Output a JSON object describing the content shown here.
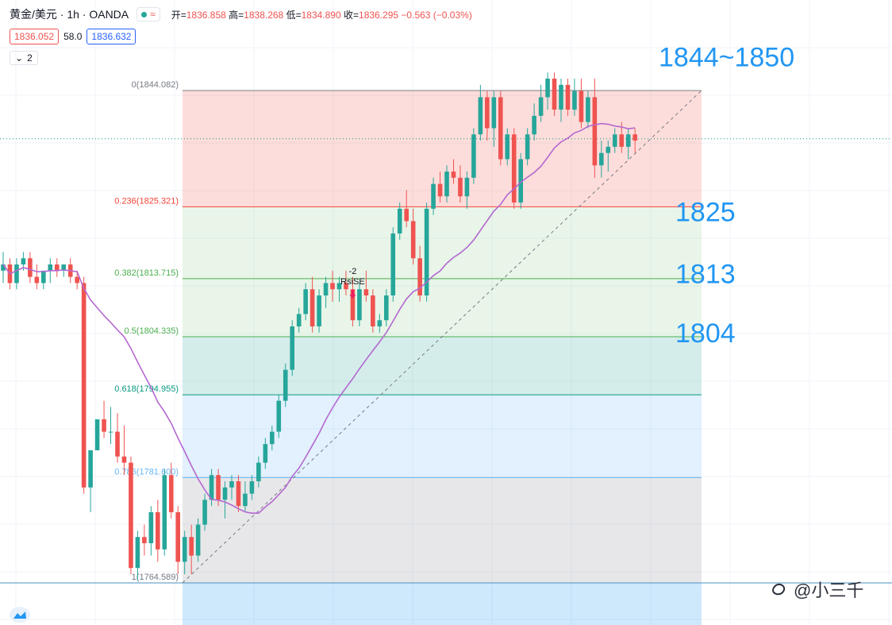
{
  "header": {
    "symbol": "黄金/美元 · 1h · OANDA",
    "ohlc_open_label": "开=",
    "ohlc_open": "1836.858",
    "ohlc_high_label": "高=",
    "ohlc_high": "1838.268",
    "ohlc_low_label": "低=",
    "ohlc_low": "1834.890",
    "ohlc_close_label": "收=",
    "ohlc_close": "1836.295",
    "ohlc_change": "−0.563 (−0.03%)",
    "sell_price": "1836.052",
    "spread": "58.0",
    "buy_price": "1836.632",
    "indicator_count": "2"
  },
  "watermark": "@小三千",
  "colors": {
    "up": "#26a69a",
    "down": "#ef5350",
    "ma": "#b468d0",
    "label_blue": "#2196f3"
  },
  "chart_data": {
    "type": "candlestick",
    "title": "黄金/美元 · 1h · OANDA",
    "ylim": [
      1760,
      1852
    ],
    "last_price": 1836.295,
    "fib_levels": [
      {
        "ratio": "0",
        "price": 1844.082,
        "label": "0(1844.082)"
      },
      {
        "ratio": "0.236",
        "price": 1825.321,
        "label": "0.236(1825.321)"
      },
      {
        "ratio": "0.382",
        "price": 1813.715,
        "label": "0.382(1813.715)"
      },
      {
        "ratio": "0.5",
        "price": 1804.335,
        "label": "0.5(1804.335)"
      },
      {
        "ratio": "0.618",
        "price": 1794.955,
        "label": "0.618(1794.955)"
      },
      {
        "ratio": "0.786",
        "price": 1781.6,
        "label": "0.786(1781.600)"
      },
      {
        "ratio": "1",
        "price": 1764.589,
        "label": "1(1764.589)"
      }
    ],
    "annotations": [
      {
        "text": "1844~1850",
        "price": 1849.5
      },
      {
        "text": "1825",
        "price": 1824.5
      },
      {
        "text": "1813",
        "price": 1814.5
      },
      {
        "text": "1804",
        "price": 1805
      }
    ],
    "signal": {
      "label1": "-2",
      "label2": "RsiSE",
      "bar": 52
    },
    "candles": [
      [
        1815,
        1818,
        1813,
        1816
      ],
      [
        1816,
        1817,
        1812,
        1813
      ],
      [
        1813,
        1817,
        1812,
        1816
      ],
      [
        1816,
        1818,
        1815,
        1817
      ],
      [
        1817,
        1818,
        1813,
        1814
      ],
      [
        1814,
        1816,
        1812,
        1813
      ],
      [
        1813,
        1815,
        1812,
        1815
      ],
      [
        1815,
        1817,
        1813,
        1816
      ],
      [
        1816,
        1817,
        1814,
        1815
      ],
      [
        1815,
        1816,
        1814,
        1816
      ],
      [
        1816,
        1817,
        1813,
        1814
      ],
      [
        1814,
        1815,
        1812,
        1813
      ],
      [
        1813,
        1814,
        1779,
        1780
      ],
      [
        1780,
        1786,
        1776,
        1786
      ],
      [
        1786,
        1791,
        1786,
        1791
      ],
      [
        1791,
        1794,
        1788,
        1789
      ],
      [
        1789,
        1793,
        1787,
        1789
      ],
      [
        1789,
        1792,
        1784,
        1785
      ],
      [
        1785,
        1790,
        1782,
        1784
      ],
      [
        1784,
        1785,
        1766,
        1767
      ],
      [
        1767,
        1773,
        1765,
        1772
      ],
      [
        1772,
        1774,
        1769,
        1771
      ],
      [
        1771,
        1777,
        1769,
        1776
      ],
      [
        1776,
        1778,
        1768,
        1770
      ],
      [
        1770,
        1783,
        1769,
        1782
      ],
      [
        1782,
        1784,
        1775,
        1776
      ],
      [
        1776,
        1777,
        1766,
        1768
      ],
      [
        1768,
        1773,
        1766,
        1772
      ],
      [
        1772,
        1774,
        1766,
        1769
      ],
      [
        1769,
        1775,
        1768,
        1774
      ],
      [
        1774,
        1779,
        1773,
        1778
      ],
      [
        1778,
        1783,
        1777,
        1782
      ],
      [
        1782,
        1783,
        1777,
        1778
      ],
      [
        1778,
        1781,
        1775,
        1780
      ],
      [
        1780,
        1782,
        1778,
        1781
      ],
      [
        1781,
        1782,
        1776,
        1777
      ],
      [
        1777,
        1781,
        1776,
        1779
      ],
      [
        1779,
        1782,
        1778,
        1781
      ],
      [
        1781,
        1785,
        1780,
        1784
      ],
      [
        1784,
        1788,
        1783,
        1787
      ],
      [
        1787,
        1790,
        1786,
        1789
      ],
      [
        1789,
        1795,
        1788,
        1794
      ],
      [
        1794,
        1800,
        1793,
        1799
      ],
      [
        1799,
        1807,
        1798,
        1806
      ],
      [
        1806,
        1809,
        1805,
        1808
      ],
      [
        1808,
        1813,
        1807,
        1812
      ],
      [
        1812,
        1814,
        1805,
        1806
      ],
      [
        1806,
        1812,
        1805,
        1811
      ],
      [
        1811,
        1814,
        1809,
        1813
      ],
      [
        1813,
        1815,
        1810,
        1812
      ],
      [
        1812,
        1814,
        1810,
        1813
      ],
      [
        1813,
        1815,
        1811,
        1812
      ],
      [
        1812,
        1814,
        1806,
        1807
      ],
      [
        1807,
        1813,
        1806,
        1812
      ],
      [
        1812,
        1815,
        1810,
        1811
      ],
      [
        1811,
        1812,
        1805,
        1806
      ],
      [
        1806,
        1808,
        1805,
        1807
      ],
      [
        1807,
        1812,
        1806,
        1811
      ],
      [
        1811,
        1822,
        1810,
        1821
      ],
      [
        1821,
        1826,
        1820,
        1825
      ],
      [
        1825,
        1828,
        1822,
        1823
      ],
      [
        1823,
        1825,
        1816,
        1817
      ],
      [
        1817,
        1819,
        1810,
        1811
      ],
      [
        1811,
        1826,
        1810,
        1825
      ],
      [
        1825,
        1830,
        1824,
        1829
      ],
      [
        1829,
        1831,
        1826,
        1827
      ],
      [
        1827,
        1832,
        1826,
        1831
      ],
      [
        1831,
        1833,
        1829,
        1830
      ],
      [
        1830,
        1832,
        1826,
        1827
      ],
      [
        1827,
        1831,
        1825,
        1830
      ],
      [
        1830,
        1838,
        1829,
        1837
      ],
      [
        1837,
        1845,
        1836,
        1843
      ],
      [
        1843,
        1844,
        1836,
        1838
      ],
      [
        1838,
        1844,
        1835,
        1843
      ],
      [
        1843,
        1844,
        1832,
        1833
      ],
      [
        1833,
        1838,
        1832,
        1837
      ],
      [
        1837,
        1838,
        1825,
        1826
      ],
      [
        1826,
        1834,
        1825,
        1833
      ],
      [
        1833,
        1838,
        1832,
        1837
      ],
      [
        1837,
        1842,
        1836,
        1840
      ],
      [
        1840,
        1845,
        1839,
        1843
      ],
      [
        1843,
        1847,
        1841,
        1846
      ],
      [
        1846,
        1847,
        1840,
        1841
      ],
      [
        1841,
        1846,
        1839,
        1845
      ],
      [
        1845,
        1846,
        1840,
        1841
      ],
      [
        1841,
        1846,
        1840,
        1844
      ],
      [
        1844,
        1846,
        1838,
        1839
      ],
      [
        1839,
        1844,
        1838,
        1843
      ],
      [
        1843,
        1846,
        1830,
        1832
      ],
      [
        1832,
        1836,
        1830,
        1834
      ],
      [
        1834,
        1836,
        1831,
        1835
      ],
      [
        1835,
        1838,
        1834,
        1837
      ],
      [
        1837,
        1839,
        1834,
        1835
      ],
      [
        1835,
        1838,
        1833,
        1837
      ],
      [
        1837,
        1838,
        1834,
        1836
      ]
    ]
  }
}
